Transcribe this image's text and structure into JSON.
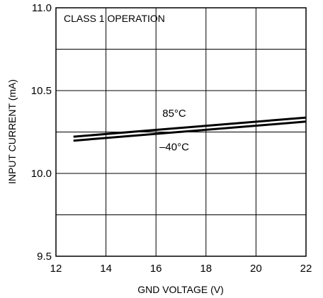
{
  "chart_data": {
    "type": "line",
    "title": "CLASS 1 OPERATION",
    "xlabel": "GND VOLTAGE (V)",
    "ylabel": "INPUT CURRENT (mA)",
    "xlim": [
      12,
      22
    ],
    "ylim": [
      9.5,
      11.0
    ],
    "xticks": [
      "12",
      "14",
      "16",
      "18",
      "20",
      "22"
    ],
    "yticks": [
      "9.5",
      "10.0",
      "10.5",
      "11.0"
    ],
    "grid": true,
    "series": [
      {
        "name": "85°C",
        "x": [
          12.7,
          22
        ],
        "y": [
          10.222,
          10.337
        ]
      },
      {
        "name": "–40°C",
        "x": [
          12.7,
          22
        ],
        "y": [
          10.198,
          10.313
        ]
      }
    ]
  }
}
